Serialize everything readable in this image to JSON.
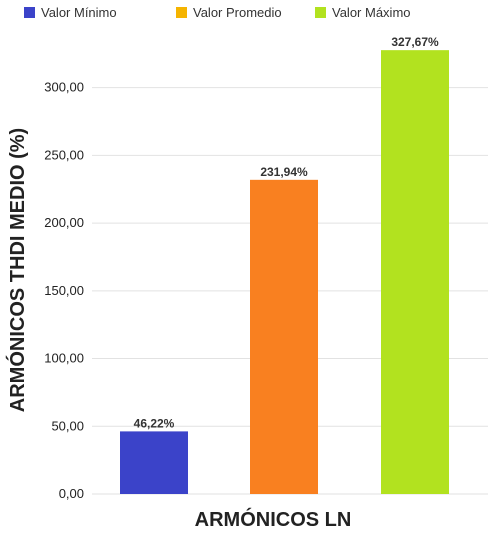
{
  "chart_data": {
    "type": "bar",
    "xlabel": "ARMÓNICOS LN",
    "ylabel": "ARMÓNICOS THDI MEDIO (%)",
    "ylim": [
      0,
      330
    ],
    "yticks": [
      "0,00",
      "50,00",
      "100,00",
      "150,00",
      "200,00",
      "250,00",
      "300,00"
    ],
    "ytick_values": [
      0,
      50,
      100,
      150,
      200,
      250,
      300
    ],
    "grid": true,
    "legend_position": "top",
    "series": [
      {
        "name": "Valor Mínimo",
        "values": [
          46.22
        ],
        "label": "46,22%",
        "color": "#3b43c9"
      },
      {
        "name": "Valor Promedio",
        "values": [
          231.94
        ],
        "label": "231,94%",
        "color": "#f98020"
      },
      {
        "name": "Valor Máximo",
        "values": [
          327.67
        ],
        "label": "327,67%",
        "color": "#b2e21f"
      }
    ],
    "legend_swatch_colors": [
      "#3b43c9",
      "#f5b400",
      "#b2e21f"
    ]
  }
}
